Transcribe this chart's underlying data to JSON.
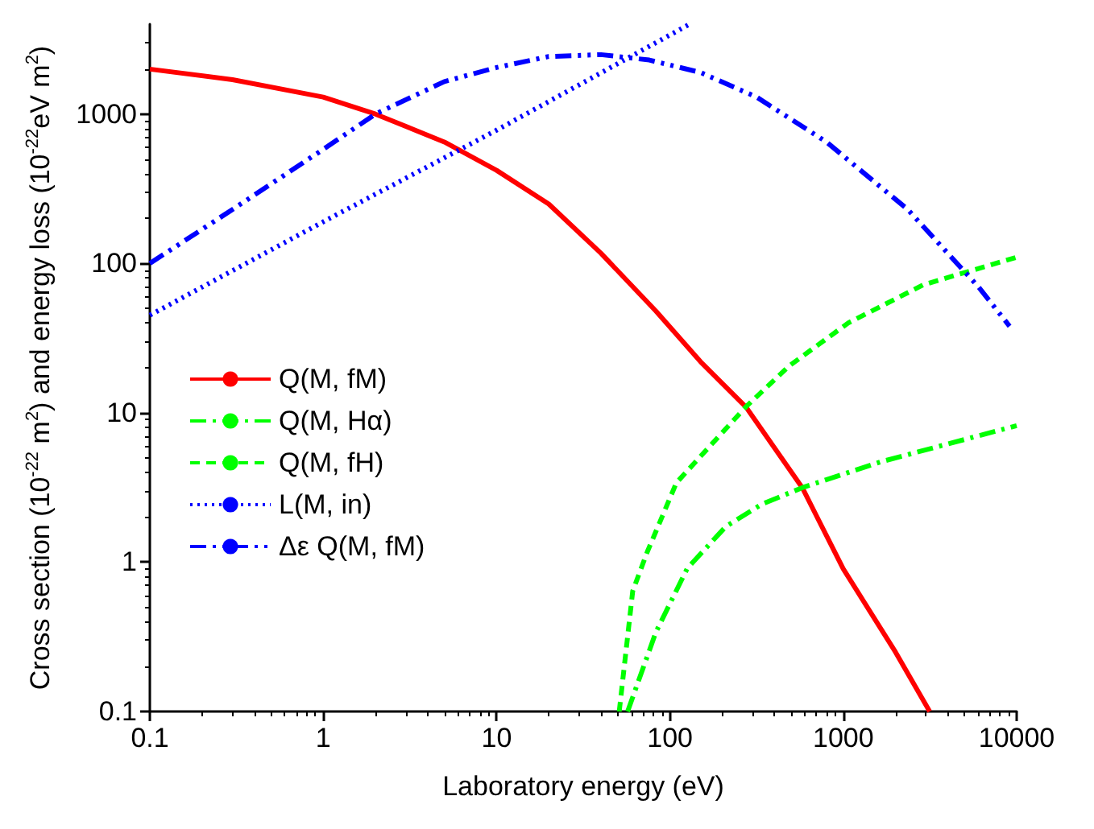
{
  "chart_data": {
    "type": "line",
    "xlabel": "Laboratory energy (eV)",
    "ylabel": "Cross section (10$^{-22}$ m$^{2}$) and energy loss (10$^{-22}$eV m$^{2}$)",
    "log": "xy",
    "grid": false,
    "legend": "left",
    "marker": "none",
    "xlim": [
      0.1,
      10000
    ],
    "xticks": [
      0.1,
      1,
      10,
      100,
      1000,
      10000
    ],
    "ylim": [
      0.1,
      4000
    ],
    "yticks": [
      0.1,
      1,
      10,
      100,
      1000
    ],
    "series": [
      {
        "name": "Q(M, fM)",
        "color": "#ff0000",
        "line_style": "solid",
        "x": [
          0.1,
          0.3,
          1,
          2,
          5,
          10,
          20,
          40,
          83,
          150,
          275,
          580,
          1000,
          2000,
          3150
        ],
        "values": [
          2000,
          1700,
          1300,
          1000,
          650,
          420,
          250,
          117,
          48,
          22,
          10.9,
          3.15,
          0.9,
          0.25,
          0.1
        ]
      },
      {
        "name": "Q(M, Hα)",
        "color": "#00ff00",
        "line_style": "dashdot",
        "x": [
          57,
          83,
          126,
          210,
          340,
          580,
          1650,
          10000
        ],
        "values": [
          0.1,
          0.34,
          0.91,
          1.73,
          2.45,
          3.15,
          4.7,
          8.2
        ]
      },
      {
        "name": "Q(M, fH)",
        "color": "#00ff00",
        "line_style": "dashed",
        "x": [
          51,
          61,
          74,
          109,
          275,
          490,
          1070,
          2900,
          10000
        ],
        "values": [
          0.1,
          0.64,
          1.17,
          3.4,
          11,
          20.7,
          40,
          72,
          110
        ]
      },
      {
        "name": "L(M, in)",
        "color": "#0000ff",
        "line_style": "dotted",
        "x": [
          0.1,
          1,
          10,
          130
        ],
        "values": [
          45,
          190,
          780,
          4000
        ]
      },
      {
        "name": "Δε Q(M, fM)",
        "color": "#0000ff",
        "line_style": "dashdotdot",
        "x": [
          0.1,
          0.3,
          1,
          2,
          5,
          10,
          20,
          40,
          76,
          150,
          316,
          800,
          2350,
          6000,
          9100
        ],
        "values": [
          100,
          230,
          580,
          1000,
          1650,
          2050,
          2430,
          2500,
          2300,
          1900,
          1300,
          650,
          230,
          70,
          38
        ]
      }
    ]
  }
}
